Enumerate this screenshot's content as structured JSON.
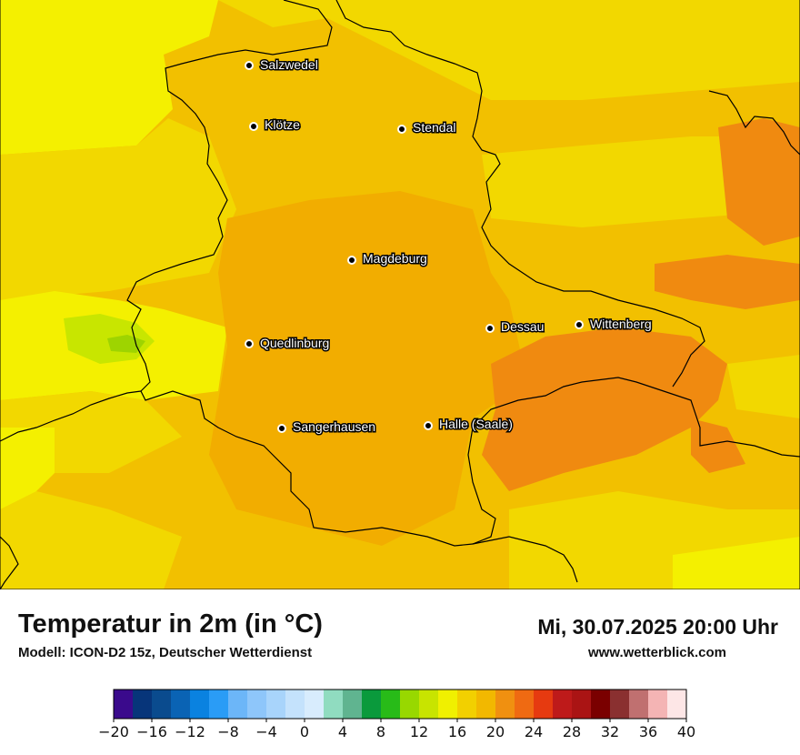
{
  "map": {
    "colors": {
      "light_yellow": "#f4f000",
      "yellow": "#f2d800",
      "gold": "#f2c000",
      "amber": "#f2ad00",
      "orange": "#f08a10",
      "greenish": "#c8e600",
      "green": "#9ed400"
    },
    "cities": [
      {
        "name": "Salzwedel"
      },
      {
        "name": "Klötze"
      },
      {
        "name": "Stendal"
      },
      {
        "name": "Magdeburg"
      },
      {
        "name": "Dessau"
      },
      {
        "name": "Wittenberg"
      },
      {
        "name": "Quedlinburg"
      },
      {
        "name": "Sangerhausen"
      },
      {
        "name": "Halle (Saale)"
      }
    ]
  },
  "footer": {
    "title": "Temperatur in 2m (in °C)",
    "model": "Modell: ICON-D2 15z, Deutscher Wetterdienst",
    "datetime": "Mi, 30.07.2025 20:00 Uhr",
    "website": "www.wetterblick.com"
  },
  "colorbar": {
    "colors": [
      "#3a0a8c",
      "#07357a",
      "#0a4b8e",
      "#0a63b4",
      "#0a82e0",
      "#2a9cf6",
      "#6cb6f8",
      "#8ec6fa",
      "#a8d4fb",
      "#c4e2fc",
      "#d8ecfd",
      "#90dcc0",
      "#60b490",
      "#0a9a3c",
      "#28bb18",
      "#98d800",
      "#c8e400",
      "#f0f000",
      "#f2d000",
      "#f2b800",
      "#f09010",
      "#ef6a12",
      "#e63a10",
      "#be1a1a",
      "#aa1414",
      "#7a0000",
      "#8a3030",
      "#c07070",
      "#f4b4b4",
      "#fde6e6"
    ],
    "ticks": [
      "−20",
      "−16",
      "−12",
      "−8",
      "−4",
      "0",
      "4",
      "8",
      "12",
      "16",
      "20",
      "24",
      "28",
      "32",
      "36",
      "40"
    ]
  }
}
